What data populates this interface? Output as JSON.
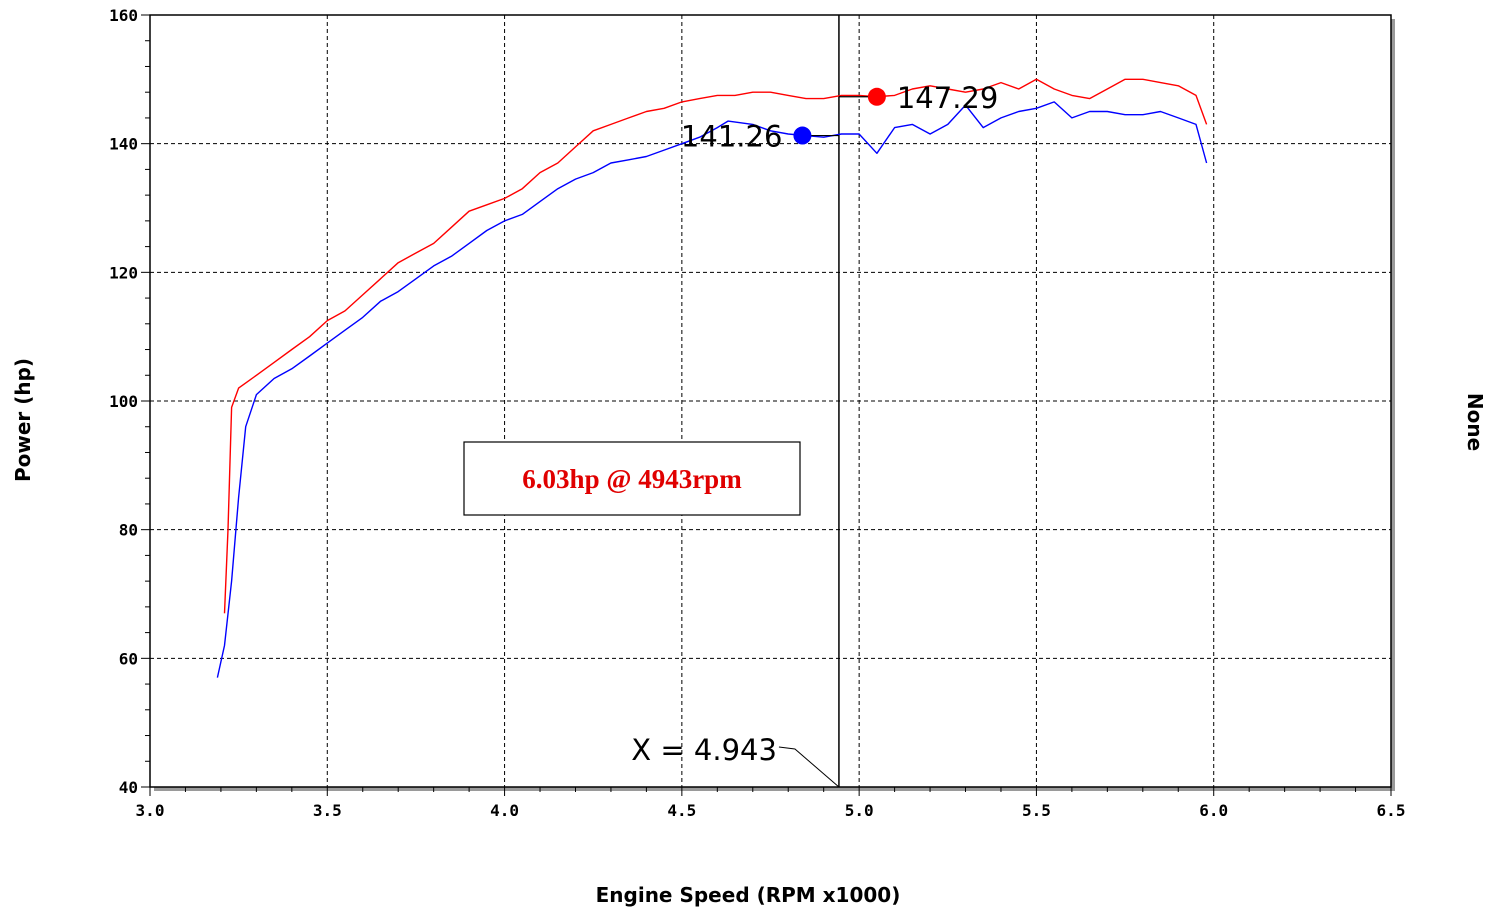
{
  "chart_data": {
    "type": "line",
    "xlabel": "Engine Speed (RPM x1000)",
    "ylabel": "Power (hp)",
    "y2label": "None",
    "xlim": [
      3.0,
      6.5
    ],
    "ylim": [
      40,
      160
    ],
    "x_ticks": [
      "3.0",
      "3.5",
      "4.0",
      "4.5",
      "5.0",
      "5.5",
      "6.0",
      "6.5"
    ],
    "y_ticks": [
      "40",
      "60",
      "80",
      "100",
      "120",
      "140",
      "160"
    ],
    "grid": true,
    "annotation": "6.03hp @ 4943rpm",
    "annotation_color": "#e00000",
    "cursor": {
      "x": 4.943,
      "label": "X = 4.943"
    },
    "markers": [
      {
        "series": "red",
        "x": 5.05,
        "y": 147.29,
        "label": "147.29"
      },
      {
        "series": "blue",
        "x": 4.84,
        "y": 141.26,
        "label": "141.26"
      }
    ],
    "series": [
      {
        "color": "#ff0000",
        "x": [
          3.21,
          3.22,
          3.23,
          3.25,
          3.3,
          3.35,
          3.4,
          3.45,
          3.5,
          3.55,
          3.6,
          3.65,
          3.7,
          3.75,
          3.8,
          3.85,
          3.9,
          3.95,
          4.0,
          4.05,
          4.1,
          4.15,
          4.2,
          4.25,
          4.3,
          4.35,
          4.4,
          4.45,
          4.5,
          4.55,
          4.6,
          4.65,
          4.7,
          4.75,
          4.8,
          4.85,
          4.9,
          4.95,
          5.0,
          5.05,
          5.1,
          5.15,
          5.2,
          5.25,
          5.3,
          5.35,
          5.4,
          5.45,
          5.5,
          5.55,
          5.6,
          5.65,
          5.7,
          5.75,
          5.8,
          5.85,
          5.9,
          5.95,
          5.98
        ],
        "y": [
          67,
          80,
          99,
          102,
          104,
          106,
          108,
          110,
          112.5,
          114,
          116.5,
          119,
          121.5,
          123,
          124.5,
          127,
          129.5,
          130.5,
          131.5,
          133,
          135.5,
          137,
          139.5,
          142,
          143,
          144,
          145,
          145.5,
          146.5,
          147,
          147.5,
          147.5,
          148,
          148,
          147.5,
          147,
          147,
          147.5,
          147.5,
          147.3,
          147.5,
          148.5,
          149,
          148.5,
          148,
          148.5,
          149.5,
          148.5,
          150,
          148.5,
          147.5,
          147,
          148.5,
          150,
          150,
          149.5,
          149,
          147.5,
          143
        ]
      },
      {
        "color": "#0000ff",
        "x": [
          3.19,
          3.21,
          3.23,
          3.25,
          3.27,
          3.3,
          3.35,
          3.4,
          3.45,
          3.5,
          3.55,
          3.6,
          3.65,
          3.7,
          3.75,
          3.8,
          3.85,
          3.9,
          3.95,
          4.0,
          4.05,
          4.1,
          4.15,
          4.2,
          4.25,
          4.3,
          4.35,
          4.4,
          4.45,
          4.5,
          4.55,
          4.6,
          4.63,
          4.7,
          4.75,
          4.8,
          4.84,
          4.9,
          4.95,
          5.0,
          5.05,
          5.1,
          5.15,
          5.2,
          5.25,
          5.3,
          5.35,
          5.4,
          5.45,
          5.5,
          5.55,
          5.6,
          5.65,
          5.7,
          5.75,
          5.8,
          5.85,
          5.9,
          5.95,
          5.98
        ],
        "y": [
          57,
          62,
          72,
          85,
          96,
          101,
          103.5,
          105,
          107,
          109,
          111,
          113,
          115.5,
          117,
          119,
          121,
          122.5,
          124.5,
          126.5,
          128,
          129,
          131,
          133,
          134.5,
          135.5,
          137,
          137.5,
          138,
          139,
          140,
          141,
          142.5,
          143.5,
          143,
          142,
          141.5,
          141.3,
          141,
          141.5,
          141.5,
          138.5,
          142.5,
          143,
          141.5,
          143,
          146,
          142.5,
          144,
          145,
          145.5,
          146.5,
          144,
          145,
          145,
          144.5,
          144.5,
          145,
          144,
          143,
          137
        ]
      }
    ]
  }
}
